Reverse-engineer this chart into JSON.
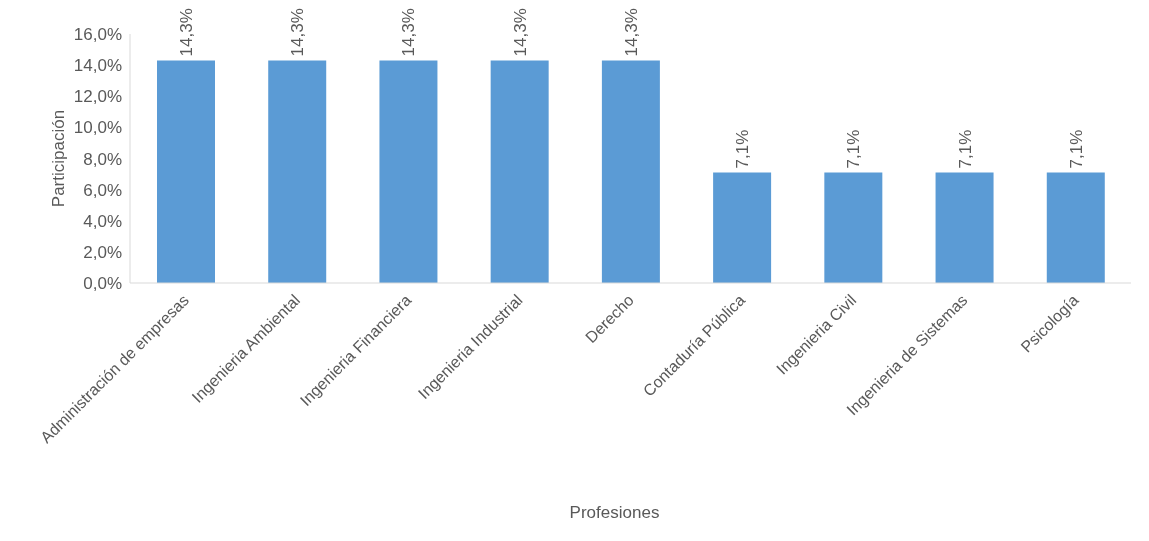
{
  "chart_data": {
    "type": "bar",
    "xlabel": "Profesiones",
    "ylabel": "Participación",
    "categories": [
      "Administración de empresas",
      "Ingenieria Ambiental",
      "Ingenieria Financiera",
      "Ingenieria Industrial",
      "Derecho",
      "Contaduría Pública",
      "Ingenieria Civil",
      "Ingenieria de Sistemas",
      "Psicología"
    ],
    "values": [
      14.3,
      14.3,
      14.3,
      14.3,
      14.3,
      7.1,
      7.1,
      7.1,
      7.1
    ],
    "value_labels": [
      "14,3%",
      "14,3%",
      "14,3%",
      "14,3%",
      "14,3%",
      "7,1%",
      "7,1%",
      "7,1%",
      "7,1%"
    ],
    "color": "#5b9bd5",
    "ylim": [
      0,
      16
    ],
    "yticks": [
      {
        "value": 0,
        "label": "0,0%"
      },
      {
        "value": 2,
        "label": "2,0%"
      },
      {
        "value": 4,
        "label": "4,0%"
      },
      {
        "value": 6,
        "label": "6,0%"
      },
      {
        "value": 8,
        "label": "8,0%"
      },
      {
        "value": 10,
        "label": "10,0%"
      },
      {
        "value": 12,
        "label": "12,0%"
      },
      {
        "value": 14,
        "label": "14,0%"
      },
      {
        "value": 16,
        "label": "16,0%"
      }
    ],
    "grid": false,
    "legend": false
  }
}
